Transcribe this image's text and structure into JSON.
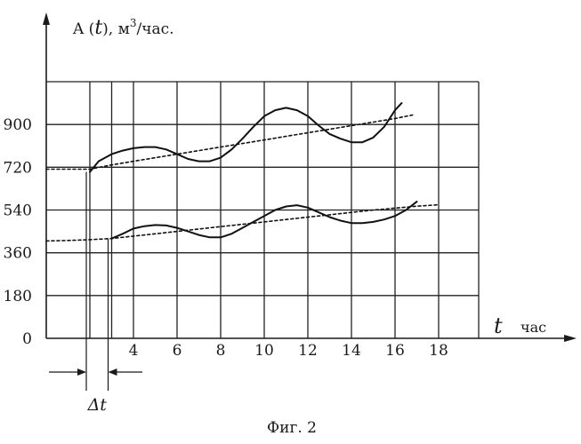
{
  "chart_data": {
    "type": "line",
    "ylabel": "A (t), м³/час.",
    "ylabel_parts": {
      "name": "A (",
      "var": "t",
      "close": "), м",
      "power": "3",
      "unit": "/час."
    },
    "xlabel_var": "t",
    "xlabel_unit": "час",
    "xlim": [
      0,
      18
    ],
    "ylim": [
      0,
      1080
    ],
    "yticks": [
      "0",
      "180",
      "360",
      "540",
      "720",
      "900"
    ],
    "yticks_values": [
      0,
      180,
      360,
      540,
      720,
      900
    ],
    "xticks": [
      "4",
      "6",
      "8",
      "10",
      "12",
      "14",
      "16",
      "18"
    ],
    "xticks_values": [
      4,
      6,
      8,
      10,
      12,
      14,
      16,
      18
    ],
    "grid": true,
    "vertical_grid_x": [
      2,
      3,
      4,
      6,
      8,
      10,
      12,
      14,
      16,
      18
    ],
    "horizontal_grid_y": [
      180,
      360,
      540,
      720,
      900,
      1080
    ],
    "delta_label": "Δt",
    "delta_range": [
      2,
      3
    ],
    "caption": "Фиг. 2",
    "series": [
      {
        "style": "solid",
        "x": [
          2.0,
          2.4,
          3.0,
          3.5,
          4.0,
          4.5,
          5.0,
          5.5,
          6.0,
          6.5,
          7.0,
          7.5,
          8.0,
          8.5,
          9.0,
          9.5,
          10.0,
          10.5,
          11.0,
          11.5,
          12.0,
          12.5,
          13.0,
          13.5,
          14.0,
          14.5,
          15.0,
          15.5,
          16.0,
          16.3
        ],
        "y": [
          700,
          745,
          775,
          790,
          800,
          805,
          805,
          795,
          775,
          755,
          745,
          745,
          760,
          795,
          840,
          890,
          935,
          960,
          970,
          960,
          935,
          895,
          860,
          840,
          825,
          825,
          845,
          890,
          960,
          990
        ]
      },
      {
        "style": "dashed",
        "x": [
          0,
          1,
          2,
          3,
          4,
          5,
          6,
          7,
          8,
          9,
          10,
          11,
          12,
          13,
          14,
          15,
          16,
          16.8
        ],
        "y": [
          712,
          712,
          712,
          730,
          745,
          760,
          775,
          790,
          805,
          820,
          835,
          850,
          865,
          880,
          895,
          910,
          925,
          940
        ]
      },
      {
        "style": "solid",
        "x": [
          3.0,
          3.5,
          4.0,
          4.5,
          5.0,
          5.5,
          6.0,
          6.5,
          7.0,
          7.5,
          8.0,
          8.5,
          9.0,
          9.5,
          10.0,
          10.5,
          11.0,
          11.5,
          12.0,
          12.5,
          13.0,
          13.5,
          14.0,
          14.5,
          15.0,
          15.5,
          16.0,
          16.5,
          17.0
        ],
        "y": [
          420,
          440,
          462,
          472,
          477,
          475,
          465,
          450,
          435,
          425,
          425,
          440,
          465,
          490,
          515,
          540,
          555,
          560,
          550,
          530,
          510,
          495,
          485,
          485,
          490,
          500,
          515,
          540,
          575
        ]
      },
      {
        "style": "dashed",
        "x": [
          0,
          1,
          2,
          3,
          4,
          5,
          6,
          7,
          8,
          9,
          10,
          11,
          12,
          13,
          14,
          15,
          16,
          17,
          18
        ],
        "y": [
          410,
          412,
          415,
          420,
          430,
          440,
          450,
          460,
          470,
          480,
          490,
          500,
          510,
          520,
          530,
          540,
          548,
          556,
          562
        ]
      }
    ]
  }
}
